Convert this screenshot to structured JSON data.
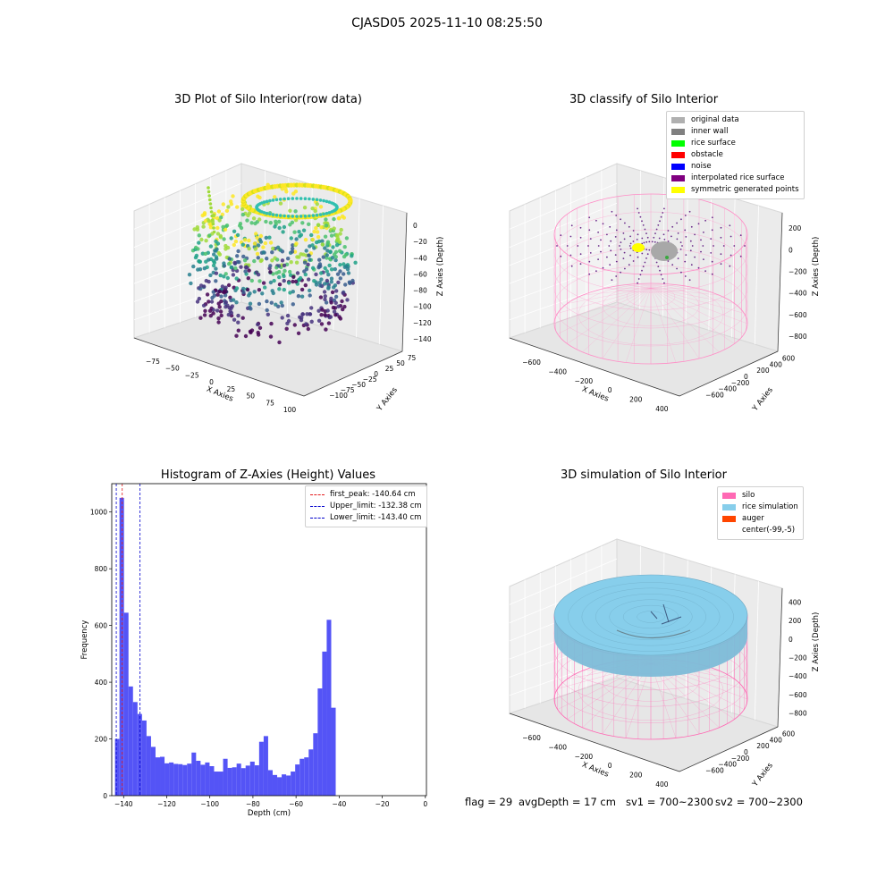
{
  "figure_title": "CJASD05 2025-11-10 08:25:50",
  "status": {
    "flag": "flag = 29",
    "avg_depth": "avgDepth = 17 cm",
    "sv1": "sv1 = 700~2300",
    "sv2": "sv2 = 700~2300"
  },
  "colors": {
    "silo": "#ff69b4",
    "rice_simulation": "#87ceeb",
    "auger": "#ff4500",
    "hist_bar": "#4b4bf5",
    "first_peak": "#e41a1c",
    "limits": "#0000cc"
  },
  "chart_data": [
    {
      "type": "scatter",
      "projection": "3d",
      "title": "3D Plot of Silo Interior(row data)",
      "xlabel": "X Axies",
      "ylabel": "Y Axies",
      "zlabel": "Z Axies (Depth)",
      "x_ticks": [
        "−75",
        "−50",
        "−25",
        "0",
        "25",
        "50",
        "75",
        "100"
      ],
      "y_ticks": [
        "−100",
        "−75",
        "−50",
        "−25",
        "0",
        "25",
        "50",
        "75"
      ],
      "z_ticks": [
        "0",
        "−20",
        "−40",
        "−60",
        "−80",
        "−100",
        "−120",
        "−140"
      ],
      "colormap": "viridis"
    },
    {
      "type": "scatter",
      "projection": "3d",
      "title": "3D classify of Silo Interior",
      "xlabel": "X Axies",
      "ylabel": "Y Axies",
      "zlabel": "Z Axies (Depth)",
      "x_ticks": [
        "−600",
        "−400",
        "−200",
        "0",
        "200",
        "400"
      ],
      "y_ticks": [
        "−600",
        "−400",
        "−200",
        "0",
        "200",
        "400",
        "600"
      ],
      "z_ticks": [
        "200",
        "0",
        "−200",
        "−400",
        "−600",
        "−800"
      ],
      "legend": [
        {
          "label": "original data",
          "color": "#b0b0b0"
        },
        {
          "label": "inner wall",
          "color": "#808080"
        },
        {
          "label": "rice surface",
          "color": "#00ff00"
        },
        {
          "label": "obstacle",
          "color": "#ff0000"
        },
        {
          "label": "noise",
          "color": "#0000ff"
        },
        {
          "label": "interpolated rice surface",
          "color": "#800080"
        },
        {
          "label": "symmetric generated points",
          "color": "#ffff00"
        }
      ]
    },
    {
      "type": "bar",
      "title": "Histogram of Z-Axies (Height) Values",
      "xlabel": "Depth (cm)",
      "ylabel": "Frequency",
      "xlim": [
        -145.5,
        0.5
      ],
      "ylim": [
        0,
        1100
      ],
      "bin_width": 2.09,
      "bin_start": -144.0,
      "values": [
        200,
        1050,
        645,
        385,
        330,
        288,
        265,
        210,
        172,
        135,
        137,
        114,
        117,
        112,
        111,
        108,
        113,
        152,
        123,
        109,
        117,
        104,
        85,
        85,
        130,
        98,
        100,
        113,
        97,
        106,
        120,
        107,
        190,
        210,
        90,
        73,
        65,
        75,
        71,
        85,
        110,
        130,
        135,
        163,
        220,
        378,
        508,
        620,
        310
      ],
      "x_tick_labels": [
        "−140",
        "−120",
        "−100",
        "−80",
        "−60",
        "−40",
        "−20",
        "0"
      ],
      "x_tick_values": [
        -140,
        -120,
        -100,
        -80,
        -60,
        -40,
        -20,
        0
      ],
      "y_tick_labels": [
        "0",
        "200",
        "400",
        "600",
        "800",
        "1000"
      ],
      "y_tick_values": [
        0,
        200,
        400,
        600,
        800,
        1000
      ],
      "reference_lines": [
        {
          "label": "first_peak: -140.64 cm",
          "x": -140.64,
          "color": "#e41a1c"
        },
        {
          "label": "Upper_limit: -132.38 cm",
          "x": -132.38,
          "color": "#0000cc"
        },
        {
          "label": "Lower_limit: -143.40 cm",
          "x": -143.4,
          "color": "#0000cc"
        }
      ],
      "legend_position": "top-right"
    },
    {
      "type": "scatter",
      "projection": "3d",
      "title": "3D simulation of Silo Interior",
      "xlabel": "X Axies",
      "ylabel": "Y Axies",
      "zlabel": "Z Axies (Depth)",
      "x_ticks": [
        "−600",
        "−400",
        "−200",
        "0",
        "200",
        "400"
      ],
      "y_ticks": [
        "−600",
        "−400",
        "−200",
        "0",
        "200",
        "400",
        "600"
      ],
      "z_ticks": [
        "400",
        "200",
        "0",
        "−200",
        "−400",
        "−600",
        "−800"
      ],
      "legend": [
        {
          "label": "silo",
          "color": "#ff69b4"
        },
        {
          "label": "rice simulation",
          "color": "#87ceeb"
        },
        {
          "label": "auger",
          "color": "#ff4500"
        },
        {
          "label": "center(-99,-5)",
          "color": ""
        }
      ]
    }
  ]
}
